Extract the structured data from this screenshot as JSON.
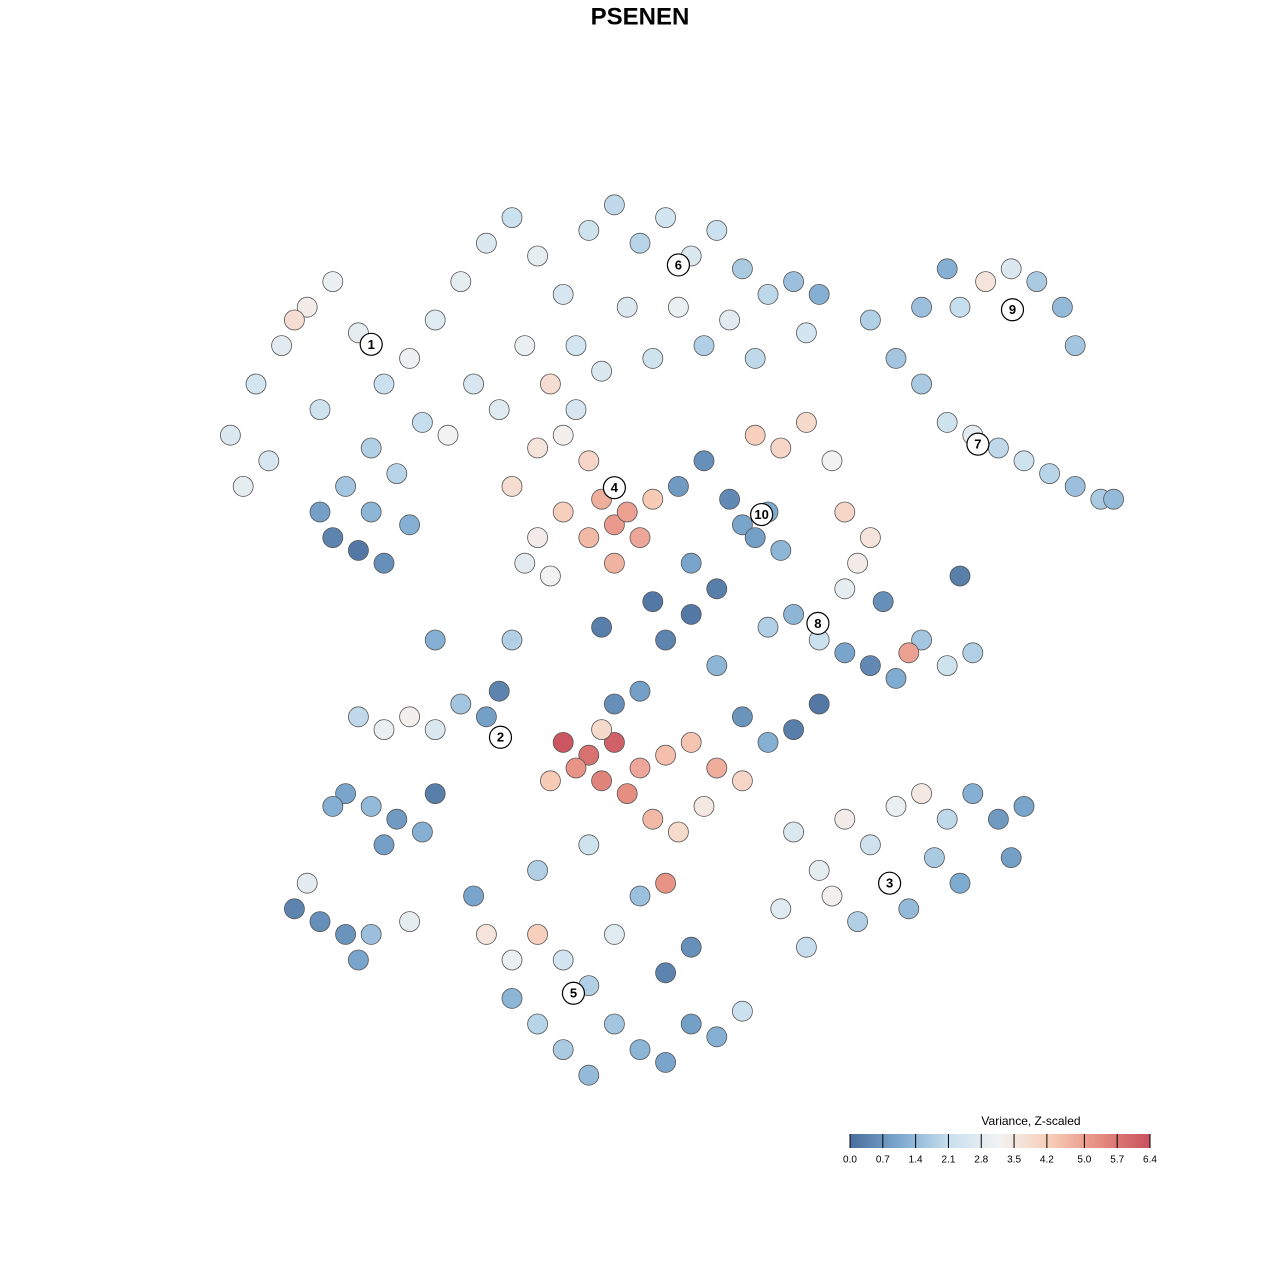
{
  "chart_data": {
    "type": "scatter",
    "title": "PSENEN",
    "xlim": [
      0,
      100
    ],
    "ylim": [
      0,
      100
    ],
    "x": [
      18,
      20,
      22,
      24,
      26,
      28,
      30,
      32,
      34,
      36,
      38,
      40,
      42,
      44,
      46,
      48,
      50,
      52,
      54,
      56,
      58,
      60,
      62,
      64,
      57,
      53,
      49,
      45,
      41,
      37,
      33,
      29,
      25,
      21,
      27,
      31,
      35,
      39,
      43,
      47,
      51,
      55,
      59,
      63,
      26,
      28,
      30,
      25,
      29,
      32,
      23,
      19,
      40,
      42,
      44,
      46,
      47,
      48,
      49,
      50,
      46,
      44,
      42,
      41,
      43,
      48,
      51,
      45,
      58,
      59,
      60,
      61,
      57,
      55,
      53,
      56,
      54,
      52,
      59,
      61,
      63,
      65,
      66,
      68,
      67,
      66,
      68,
      70,
      72,
      74,
      76,
      78,
      80,
      82,
      84,
      86,
      87,
      72,
      75,
      77,
      79,
      81,
      83,
      84,
      74,
      60,
      62,
      64,
      66,
      68,
      70,
      72,
      74,
      76,
      71,
      69,
      75,
      56,
      28,
      30,
      32,
      34,
      36,
      38,
      39,
      27,
      29,
      31,
      33,
      34,
      26,
      30,
      44,
      46,
      48,
      45,
      47,
      50,
      52,
      54,
      56,
      58,
      49,
      51,
      53,
      47,
      55,
      43,
      52,
      48,
      50,
      58,
      62,
      64,
      60,
      62,
      64,
      66,
      68,
      70,
      72,
      74,
      76,
      78,
      80,
      79,
      75,
      71,
      67,
      63,
      65,
      61,
      73,
      38,
      40,
      42,
      44,
      46,
      48,
      50,
      52,
      54,
      56,
      58,
      44,
      46,
      42,
      40,
      52,
      54,
      48,
      50,
      42,
      46,
      37,
      23,
      25,
      27,
      29,
      28,
      24,
      32,
      34,
      40,
      47,
      51,
      54
    ],
    "y": [
      66,
      70,
      73,
      76,
      78,
      74,
      70,
      72,
      75,
      78,
      81,
      83,
      80,
      77,
      82,
      84,
      81,
      83,
      80,
      82,
      79,
      77,
      78,
      77,
      75,
      76,
      76,
      73,
      73,
      70,
      67,
      65,
      68,
      64,
      62,
      63,
      66,
      68,
      70,
      71,
      72,
      73,
      72,
      74,
      58,
      57,
      56,
      60,
      60,
      59,
      75,
      62,
      62,
      65,
      66,
      64,
      61,
      59,
      60,
      58,
      58,
      60,
      58,
      56,
      55,
      56,
      61,
      68,
      59,
      58,
      60,
      57,
      61,
      64,
      62,
      54,
      52,
      50,
      66,
      65,
      67,
      64,
      60,
      58,
      56,
      54,
      75,
      72,
      70,
      67,
      66,
      65,
      64,
      63,
      62,
      61,
      61,
      76,
      76,
      78,
      79,
      78,
      76,
      73,
      79,
      51,
      52,
      50,
      49,
      48,
      47,
      50,
      48,
      49,
      49,
      53,
      55,
      48,
      44,
      43,
      44,
      43,
      45,
      44,
      46,
      38,
      37,
      36,
      35,
      38,
      37,
      34,
      42,
      41,
      42,
      40,
      39,
      40,
      41,
      42,
      40,
      39,
      38,
      36,
      35,
      43,
      37,
      39,
      31,
      45,
      46,
      44,
      43,
      45,
      42,
      35,
      32,
      36,
      34,
      37,
      38,
      36,
      38,
      36,
      37,
      33,
      31,
      29,
      28,
      26,
      30,
      29,
      33,
      27,
      25,
      27,
      25,
      23,
      20,
      18,
      17,
      20,
      19,
      21,
      18,
      16,
      20,
      22,
      24,
      26,
      27,
      30,
      32,
      34,
      30,
      29,
      28,
      27,
      27,
      25,
      31,
      28,
      50,
      50,
      51,
      53,
      56
    ],
    "values": [
      2.6,
      2.4,
      2.8,
      3.4,
      3.0,
      2.9,
      2.2,
      3.1,
      2.7,
      2.9,
      2.6,
      2.2,
      2.9,
      2.5,
      2.3,
      2.0,
      1.9,
      2.4,
      2.6,
      2.2,
      1.7,
      2.0,
      1.5,
      1.2,
      2.8,
      3.0,
      2.6,
      2.4,
      3.0,
      2.5,
      2.1,
      1.8,
      2.3,
      2.5,
      1.6,
      1.9,
      3.2,
      2.7,
      3.8,
      2.6,
      2.3,
      1.8,
      2.0,
      2.4,
      0.4,
      0.2,
      0.6,
      0.9,
      1.3,
      1.2,
      3.8,
      2.9,
      3.8,
      3.6,
      3.3,
      4.0,
      4.8,
      5.1,
      5.0,
      4.9,
      4.6,
      4.2,
      3.4,
      2.8,
      3.2,
      4.7,
      4.3,
      2.5,
      1.0,
      0.9,
      1.1,
      1.3,
      0.5,
      0.6,
      0.8,
      0.3,
      0.2,
      0.4,
      4.2,
      4.0,
      3.9,
      3.2,
      4.0,
      3.6,
      3.4,
      2.9,
      1.8,
      1.6,
      1.7,
      2.3,
      2.8,
      2.0,
      2.3,
      1.9,
      1.5,
      1.7,
      1.4,
      1.5,
      2.1,
      3.6,
      2.6,
      1.7,
      1.4,
      1.6,
      1.2,
      1.8,
      1.3,
      2.2,
      1.0,
      0.5,
      1.1,
      1.6,
      2.3,
      1.8,
      5.0,
      0.6,
      0.3,
      1.3,
      2.0,
      3.0,
      3.3,
      2.6,
      1.6,
      0.9,
      0.4,
      1.0,
      1.4,
      0.8,
      1.2,
      0.3,
      1.2,
      0.9,
      6.3,
      5.8,
      6.1,
      5.2,
      5.5,
      4.9,
      4.5,
      4.4,
      4.8,
      4.0,
      5.3,
      4.6,
      3.9,
      3.9,
      3.5,
      4.3,
      5.2,
      0.6,
      0.9,
      0.7,
      0.3,
      0.2,
      1.2,
      2.6,
      2.9,
      3.4,
      2.3,
      3.0,
      3.5,
      2.0,
      1.2,
      0.8,
      1.0,
      0.9,
      1.1,
      1.4,
      1.8,
      2.1,
      3.3,
      2.7,
      1.7,
      3.6,
      3.0,
      4.2,
      2.4,
      1.8,
      1.6,
      1.3,
      1.0,
      0.9,
      1.2,
      2.2,
      1.7,
      1.4,
      1.9,
      1.3,
      0.4,
      0.6,
      2.7,
      1.5,
      1.8,
      2.3,
      1.0,
      0.4,
      0.6,
      0.7,
      1.5,
      1.0,
      2.8,
      2.9,
      1.2,
      1.8,
      0.3,
      0.2,
      1.0
    ],
    "colors": [
      "#4a6d9c",
      "#7ca9cf",
      "#c9e0ef",
      "#f2f2f2",
      "#f8cdb8",
      "#e58c80",
      "#c8505e"
    ],
    "clusters": [
      {
        "label": "1",
        "x": 29.0,
        "y": 73.1
      },
      {
        "label": "2",
        "x": 39.1,
        "y": 42.4
      },
      {
        "label": "3",
        "x": 69.5,
        "y": 31.0
      },
      {
        "label": "4",
        "x": 48.0,
        "y": 61.9
      },
      {
        "label": "5",
        "x": 44.8,
        "y": 22.4
      },
      {
        "label": "6",
        "x": 53.0,
        "y": 79.3
      },
      {
        "label": "7",
        "x": 76.4,
        "y": 65.3
      },
      {
        "label": "8",
        "x": 63.9,
        "y": 51.3
      },
      {
        "label": "9",
        "x": 79.1,
        "y": 75.8
      },
      {
        "label": "10",
        "x": 59.5,
        "y": 59.8
      }
    ],
    "colorbar": {
      "title": "Variance, Z-scaled",
      "lim": [
        0,
        6.4
      ],
      "ticks": [
        {
          "value": 0,
          "label": "0.0"
        },
        0.7,
        1.4,
        2.1,
        2.8,
        3.5,
        4.2,
        {
          "value": 5,
          "label": "5.0"
        },
        5.7,
        6.4
      ]
    }
  }
}
